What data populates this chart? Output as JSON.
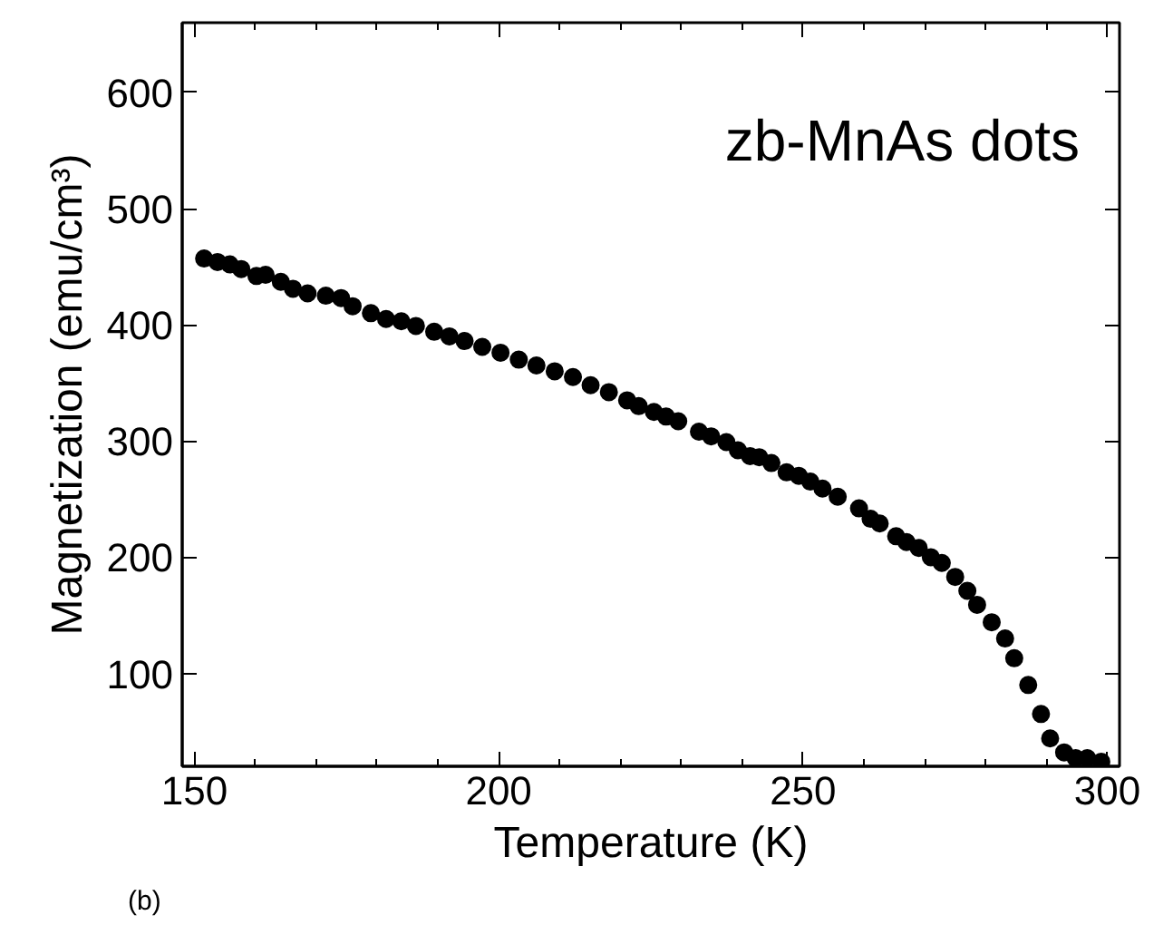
{
  "chart_data": {
    "type": "scatter",
    "xlabel": "Temperature (K)",
    "ylabel": "Magnetization (emu/cm³)",
    "annotations": [
      "zb-MnAs dots",
      "(b)"
    ],
    "xlim": [
      148,
      302
    ],
    "ylim": [
      20,
      660
    ],
    "xticks": [
      150,
      200,
      250,
      300
    ],
    "yticks": [
      100,
      200,
      300,
      400,
      500,
      600
    ],
    "grid": false,
    "marker": "circle",
    "series": [
      {
        "color": "#000000",
        "x": [
          151.6,
          153.8,
          155.8,
          157.7,
          160.2,
          161.7,
          164.2,
          166.2,
          168.6,
          171.6,
          174.1,
          176.0,
          179.0,
          181.5,
          184.0,
          186.4,
          189.4,
          191.9,
          194.4,
          197.3,
          200.3,
          203.3,
          206.2,
          209.2,
          212.2,
          215.1,
          218.1,
          221.1,
          223.0,
          225.5,
          227.5,
          229.5,
          232.9,
          234.9,
          237.4,
          239.3,
          241.3,
          242.8,
          244.8,
          247.3,
          249.3,
          251.2,
          253.2,
          255.7,
          259.2,
          261.1,
          262.6,
          265.3,
          267.0,
          269.0,
          271.0,
          272.8,
          275.0,
          277.0,
          278.6,
          281.0,
          283.2,
          284.7,
          287.0,
          289.1,
          290.6,
          292.9,
          294.8,
          296.7,
          299.0
        ],
        "values": [
          457,
          454,
          452,
          448,
          442,
          443,
          437,
          431,
          427,
          425,
          423,
          416,
          410,
          405,
          403,
          399,
          394,
          390,
          386,
          381,
          376,
          370,
          365,
          360,
          355,
          348,
          342,
          335,
          330,
          325,
          321,
          317,
          308,
          304,
          299,
          292,
          287,
          286,
          281,
          273,
          270,
          265,
          259,
          252,
          242,
          233,
          229,
          218,
          213,
          208,
          200,
          195,
          183,
          171,
          159,
          144,
          130,
          113,
          90,
          65,
          44,
          32,
          27,
          27,
          24
        ]
      }
    ]
  }
}
